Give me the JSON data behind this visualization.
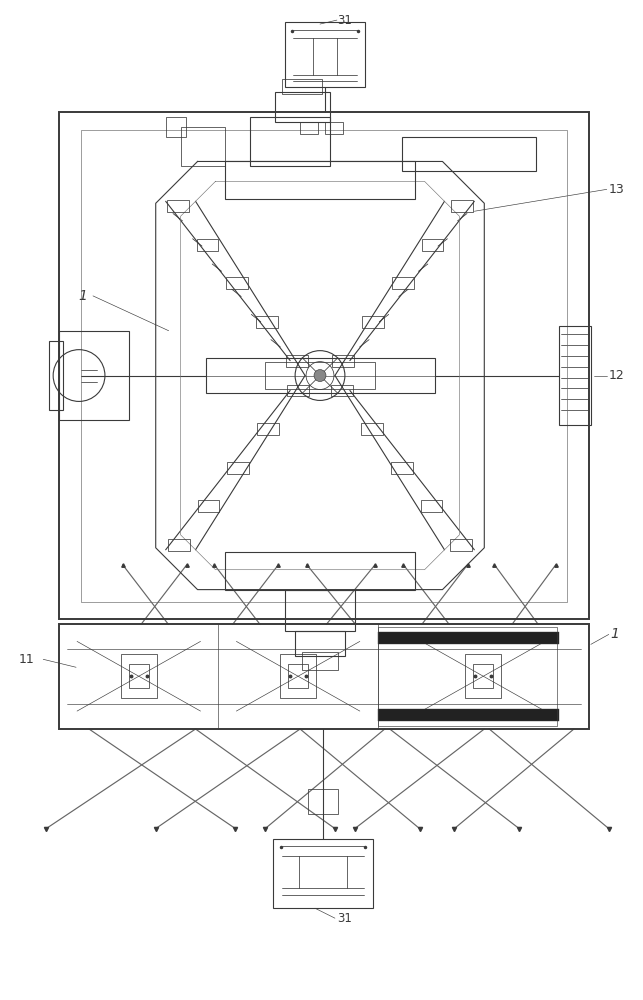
{
  "bg_color": "#ffffff",
  "lc": "#3a3a3a",
  "lc_med": "#555555",
  "lc_light": "#888888",
  "fig_width": 6.43,
  "fig_height": 10.0,
  "dpi": 100,
  "labels": {
    "top_label": "31",
    "label_1_left": "1",
    "label_11_left": "11",
    "label_1_right": "1",
    "label_12": "12",
    "label_13": "13",
    "bottom_label": "31"
  }
}
